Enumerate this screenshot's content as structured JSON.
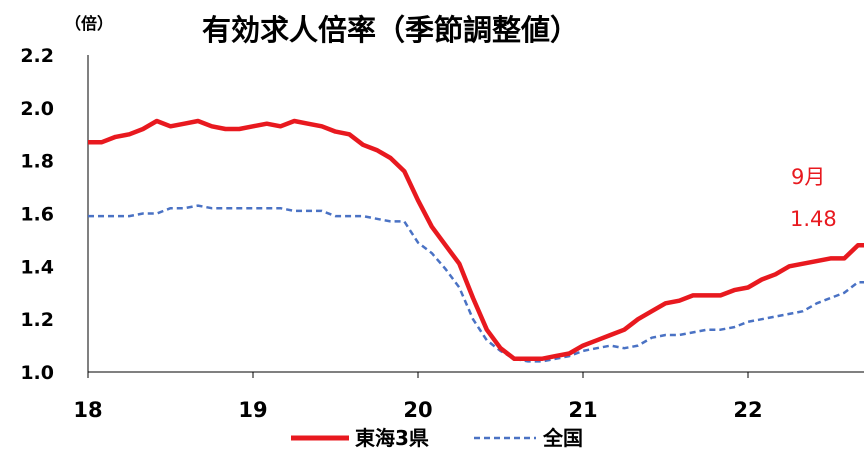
{
  "chart_data": {
    "type": "line",
    "title": "有効求人倍率（季節調整値）",
    "unit_label": "（倍）",
    "x_tick_labels": [
      "18",
      "19",
      "20",
      "21",
      "22"
    ],
    "y_tick_labels": [
      "1.0",
      "1.2",
      "1.4",
      "1.6",
      "1.8",
      "2.0",
      "2.2"
    ],
    "ylim": [
      1.0,
      2.2
    ],
    "x_period": {
      "start_year": 2018,
      "start_month": 1,
      "end_year": 2022,
      "end_month": 9
    },
    "grid": false,
    "legend_position": "bottom",
    "series": [
      {
        "name": "東海3県",
        "color": "#e8191f",
        "values": [
          1.87,
          1.87,
          1.89,
          1.9,
          1.92,
          1.95,
          1.93,
          1.94,
          1.95,
          1.93,
          1.92,
          1.92,
          1.93,
          1.94,
          1.93,
          1.95,
          1.94,
          1.93,
          1.91,
          1.9,
          1.86,
          1.84,
          1.81,
          1.76,
          1.65,
          1.55,
          1.48,
          1.41,
          1.28,
          1.16,
          1.09,
          1.05,
          1.05,
          1.05,
          1.06,
          1.07,
          1.1,
          1.12,
          1.14,
          1.16,
          1.2,
          1.23,
          1.26,
          1.27,
          1.29,
          1.29,
          1.29,
          1.31,
          1.32,
          1.35,
          1.37,
          1.4,
          1.41,
          1.42,
          1.43,
          1.43,
          1.48
        ]
      },
      {
        "name": "全国",
        "color": "#4a72c4",
        "values": [
          1.59,
          1.59,
          1.59,
          1.59,
          1.6,
          1.6,
          1.62,
          1.62,
          1.63,
          1.62,
          1.62,
          1.62,
          1.62,
          1.62,
          1.62,
          1.61,
          1.61,
          1.61,
          1.59,
          1.59,
          1.59,
          1.58,
          1.57,
          1.57,
          1.49,
          1.45,
          1.39,
          1.32,
          1.2,
          1.12,
          1.08,
          1.05,
          1.04,
          1.04,
          1.05,
          1.06,
          1.08,
          1.09,
          1.1,
          1.09,
          1.1,
          1.13,
          1.14,
          1.14,
          1.15,
          1.16,
          1.16,
          1.17,
          1.19,
          1.2,
          1.21,
          1.22,
          1.23,
          1.26,
          1.28,
          1.3,
          1.34
        ]
      }
    ],
    "annotations": [
      "9月",
      "1.48"
    ]
  }
}
